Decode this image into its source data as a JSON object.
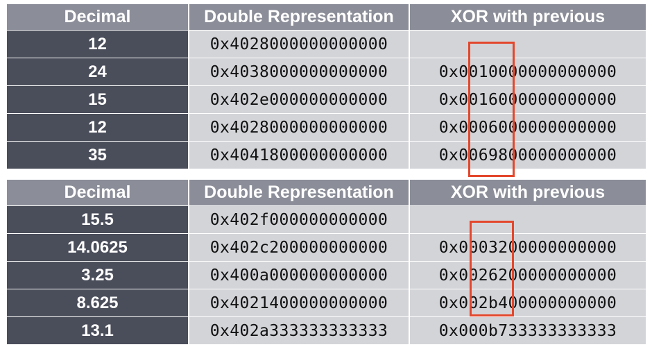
{
  "table1": {
    "headers": {
      "decimal": "Decimal",
      "double": "Double Representation",
      "xor": "XOR with previous"
    },
    "rows": [
      {
        "decimal": "12",
        "double": "0x4028000000000000",
        "xor": ""
      },
      {
        "decimal": "24",
        "double": "0x4038000000000000",
        "xor": "0x0010000000000000"
      },
      {
        "decimal": "15",
        "double": "0x402e000000000000",
        "xor": "0x0016000000000000"
      },
      {
        "decimal": "12",
        "double": "0x4028000000000000",
        "xor": "0x0006000000000000"
      },
      {
        "decimal": "35",
        "double": "0x4041800000000000",
        "xor": "0x0069800000000000"
      }
    ]
  },
  "table2": {
    "headers": {
      "decimal": "Decimal",
      "double": "Double Representation",
      "xor": "XOR with previous"
    },
    "rows": [
      {
        "decimal": "15.5",
        "double": "0x402f000000000000",
        "xor": ""
      },
      {
        "decimal": "14.0625",
        "double": "0x402c200000000000",
        "xor": "0x0003200000000000"
      },
      {
        "decimal": "3.25",
        "double": "0x400a000000000000",
        "xor": "0x0026200000000000"
      },
      {
        "decimal": "8.625",
        "double": "0x4021400000000000",
        "xor": "0x002b400000000000"
      },
      {
        "decimal": "13.1",
        "double": "0x402a333333333333",
        "xor": "0x000b733333333333"
      }
    ]
  },
  "colors": {
    "header_bg": "#8b8e98",
    "decimal_bg": "#4a4d5a",
    "cell_bg": "#d3d4d8",
    "highlight": "#e3472c"
  }
}
